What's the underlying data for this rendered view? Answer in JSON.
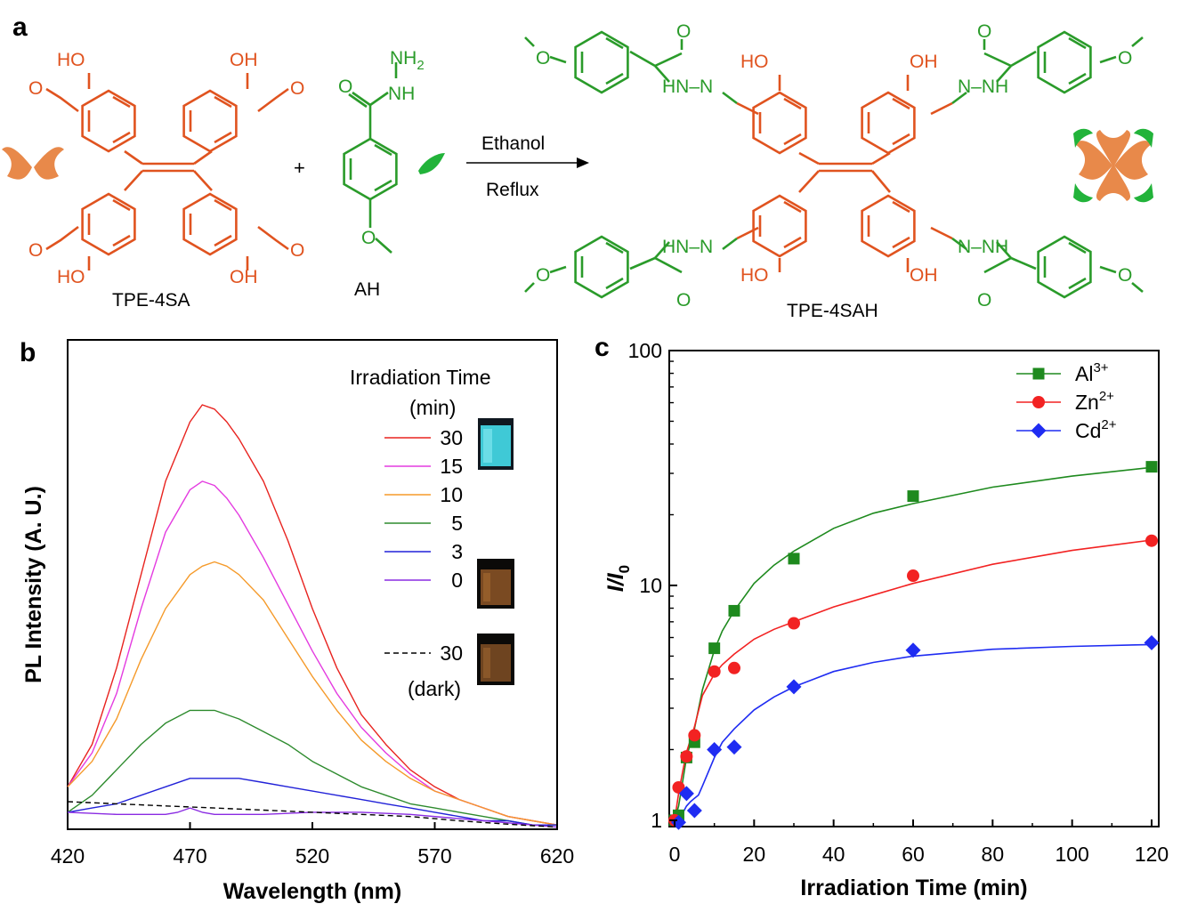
{
  "panel_labels": {
    "a": "a",
    "b": "b",
    "c": "c"
  },
  "scheme": {
    "reactant1_label": "TPE-4SA",
    "reactant2_label": "AH",
    "product_label": "TPE-4SAH",
    "plus": "+",
    "condition_top": "Ethanol",
    "condition_bottom": "Reflux",
    "atoms": {
      "HO": "HO",
      "OH": "OH",
      "O": "O",
      "NH2": "NH",
      "NH2_sub": "2",
      "NH": "NH",
      "HN_N": "HN–N",
      "N_NH": "N–NH"
    },
    "colors": {
      "tpe": "#E0531F",
      "hydrazide": "#2A9B2A",
      "bright_green": "#22B33A",
      "petal": "#E8894A"
    }
  },
  "chart_data": [
    {
      "type": "line",
      "panel": "b",
      "xlabel": "Wavelength (nm)",
      "ylabel": "PL Intensity (A. U.)",
      "xlim": [
        420,
        620
      ],
      "xticks": [
        420,
        470,
        520,
        570,
        620
      ],
      "legend_title_line1": "Irradiation Time",
      "legend_title_line2": "(min)",
      "legend_placement": "top-right",
      "series": [
        {
          "name": "30",
          "color": "#E8231F",
          "x": [
            420,
            430,
            440,
            450,
            460,
            470,
            475,
            480,
            485,
            490,
            500,
            510,
            520,
            530,
            540,
            550,
            560,
            570,
            580,
            590,
            600,
            610,
            620
          ],
          "y": [
            0.1,
            0.2,
            0.38,
            0.6,
            0.82,
            0.96,
            1.0,
            0.99,
            0.96,
            0.92,
            0.82,
            0.68,
            0.52,
            0.38,
            0.27,
            0.2,
            0.14,
            0.1,
            0.07,
            0.05,
            0.03,
            0.02,
            0.01
          ]
        },
        {
          "name": "15",
          "color": "#E43BE0",
          "x": [
            420,
            430,
            440,
            450,
            460,
            470,
            475,
            480,
            485,
            490,
            500,
            510,
            520,
            530,
            540,
            550,
            560,
            570,
            580,
            590,
            600,
            610,
            620
          ],
          "y": [
            0.1,
            0.18,
            0.32,
            0.52,
            0.7,
            0.8,
            0.82,
            0.81,
            0.78,
            0.74,
            0.64,
            0.53,
            0.42,
            0.32,
            0.24,
            0.18,
            0.13,
            0.09,
            0.07,
            0.05,
            0.03,
            0.02,
            0.01
          ]
        },
        {
          "name": "10",
          "color": "#F59A2A",
          "x": [
            420,
            430,
            440,
            450,
            460,
            470,
            475,
            480,
            485,
            490,
            500,
            510,
            520,
            530,
            540,
            550,
            560,
            570,
            580,
            590,
            600,
            610,
            620
          ],
          "y": [
            0.1,
            0.16,
            0.26,
            0.4,
            0.52,
            0.6,
            0.62,
            0.63,
            0.62,
            0.6,
            0.54,
            0.45,
            0.36,
            0.28,
            0.21,
            0.16,
            0.12,
            0.09,
            0.07,
            0.05,
            0.03,
            0.02,
            0.01
          ]
        },
        {
          "name": "5",
          "color": "#2E8B2E",
          "x": [
            420,
            430,
            440,
            450,
            460,
            470,
            480,
            490,
            500,
            510,
            520,
            530,
            540,
            550,
            560,
            570,
            580,
            590,
            600,
            610,
            620
          ],
          "y": [
            0.04,
            0.08,
            0.14,
            0.2,
            0.25,
            0.28,
            0.28,
            0.26,
            0.23,
            0.2,
            0.16,
            0.13,
            0.1,
            0.08,
            0.06,
            0.05,
            0.04,
            0.03,
            0.02,
            0.01,
            0.01
          ]
        },
        {
          "name": "3",
          "color": "#2222D8",
          "x": [
            420,
            430,
            440,
            450,
            460,
            470,
            480,
            490,
            500,
            510,
            520,
            530,
            540,
            550,
            560,
            570,
            580,
            590,
            600,
            610,
            620
          ],
          "y": [
            0.04,
            0.05,
            0.06,
            0.08,
            0.1,
            0.12,
            0.12,
            0.12,
            0.11,
            0.1,
            0.09,
            0.08,
            0.07,
            0.06,
            0.05,
            0.04,
            0.03,
            0.02,
            0.02,
            0.01,
            0.01
          ]
        },
        {
          "name": "0",
          "color": "#8A2BE2",
          "x": [
            420,
            440,
            460,
            465,
            470,
            475,
            480,
            500,
            520,
            540,
            560,
            580,
            600,
            620
          ],
          "y": [
            0.04,
            0.035,
            0.035,
            0.04,
            0.05,
            0.04,
            0.035,
            0.035,
            0.04,
            0.04,
            0.035,
            0.025,
            0.015,
            0.005
          ]
        },
        {
          "name": "30",
          "color": "#000000",
          "dashed": true,
          "x": [
            420,
            440,
            460,
            480,
            500,
            520,
            540,
            560,
            580,
            600,
            620
          ],
          "y": [
            0.065,
            0.06,
            0.055,
            0.05,
            0.045,
            0.04,
            0.035,
            0.03,
            0.02,
            0.012,
            0.005
          ]
        }
      ],
      "dark_label": "(dark)",
      "vial_colors": {
        "bright": "#3FC9D6",
        "dim": "#7A4A22"
      }
    },
    {
      "type": "scatter",
      "panel": "c",
      "xlabel": "Irradiation Time (min)",
      "ylabel_main": "I",
      "ylabel_sep": "/",
      "ylabel_sub": "0",
      "xlim": [
        0,
        120
      ],
      "xticks": [
        0,
        20,
        40,
        60,
        80,
        100,
        120
      ],
      "ylim": [
        1,
        100
      ],
      "yscale": "log",
      "yticks": [
        1,
        10,
        100
      ],
      "legend_placement": "top-right",
      "series": [
        {
          "name": "Al",
          "sup": "3+",
          "color": "#1E8A1E",
          "marker": "square",
          "x": [
            0,
            1,
            3,
            5,
            10,
            15,
            30,
            60,
            120
          ],
          "y": [
            1.0,
            1.05,
            1.85,
            2.15,
            5.4,
            7.8,
            13,
            24,
            32
          ],
          "fit_x": [
            0,
            1,
            2,
            3,
            5,
            7,
            10,
            12,
            15,
            20,
            25,
            30,
            40,
            50,
            60,
            80,
            100,
            120
          ],
          "fit_y": [
            1.0,
            1.15,
            1.45,
            1.85,
            2.45,
            3.6,
            5.3,
            6.4,
            7.8,
            10.2,
            12.2,
            14,
            17.5,
            20.3,
            22.3,
            26.2,
            29.2,
            31.8
          ]
        },
        {
          "name": "Zn",
          "sup": "2+",
          "color": "#F22222",
          "marker": "circle",
          "x": [
            0,
            1,
            3,
            5,
            10,
            15,
            30,
            60,
            120
          ],
          "y": [
            1.0,
            1.38,
            1.87,
            2.3,
            4.3,
            4.45,
            6.9,
            11,
            15.5
          ],
          "fit_x": [
            0,
            1,
            2,
            3,
            5,
            7,
            10,
            12,
            15,
            20,
            25,
            30,
            40,
            50,
            60,
            80,
            100,
            120
          ],
          "fit_y": [
            1.0,
            1.3,
            1.6,
            1.95,
            2.5,
            3.4,
            4.2,
            4.6,
            5.1,
            5.9,
            6.5,
            7.0,
            8.1,
            9.1,
            10.2,
            12.3,
            14.1,
            15.6
          ]
        },
        {
          "name": "Cd",
          "sup": "2+",
          "color": "#1F2CF2",
          "marker": "diamond",
          "x": [
            1,
            3,
            5,
            10,
            15,
            30,
            60,
            120
          ],
          "y": [
            0.98,
            1.3,
            1.1,
            2.0,
            2.05,
            3.7,
            5.3,
            5.7
          ],
          "fit_x": [
            0,
            1,
            2,
            3,
            4,
            5,
            6,
            7,
            10,
            12,
            15,
            20,
            25,
            30,
            40,
            50,
            60,
            80,
            100,
            120
          ],
          "fit_y": [
            0.95,
            1.0,
            1.07,
            1.15,
            1.2,
            1.24,
            1.28,
            1.4,
            1.85,
            2.15,
            2.45,
            2.95,
            3.35,
            3.7,
            4.3,
            4.7,
            5.0,
            5.35,
            5.5,
            5.6
          ]
        }
      ]
    }
  ]
}
